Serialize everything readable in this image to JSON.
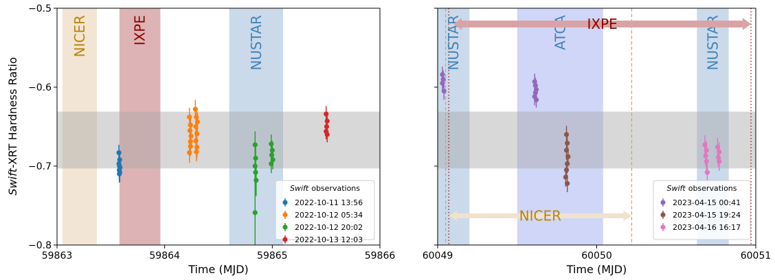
{
  "figure": {
    "ylabel_italic": "Swift",
    "ylabel_rest": "-XRT Hardness Ratio"
  },
  "chart_data": [
    {
      "type": "scatter",
      "xlabel": "Time (MJD)",
      "ylabel": "Swift-XRT Hardness Ratio",
      "xlim": [
        59863,
        59866
      ],
      "ylim": [
        -0.8,
        -0.5
      ],
      "xticks": [
        59863,
        59864,
        59865,
        59866
      ],
      "yticks": [
        -0.8,
        -0.7,
        -0.6,
        -0.5
      ],
      "grid": false,
      "legend": {
        "placement": "lower right",
        "title_italic": "Swift",
        "title_rest": "observations"
      },
      "hband": {
        "y0": -0.703,
        "y1": -0.631,
        "color": "#a9a9a9"
      },
      "spans": [
        {
          "label": "NICER",
          "x0": 59863.05,
          "x1": 59863.37,
          "color": "#e9cfae",
          "text_color": "#b8860b"
        },
        {
          "label": "IXPE",
          "x0": 59863.58,
          "x1": 59863.96,
          "color": "#c37478",
          "text_color": "#8b0000"
        },
        {
          "label": "NUSTAR",
          "x0": 59864.6,
          "x1": 59865.1,
          "color": "#9fbcda",
          "text_color": "#4682b4"
        }
      ],
      "series": [
        {
          "name": "2022-10-11 13:56",
          "color": "#1f77b4",
          "points": [
            {
              "x": 59863.575,
              "y": -0.683,
              "err": 0.01
            },
            {
              "x": 59863.582,
              "y": -0.692,
              "err": 0.011
            },
            {
              "x": 59863.575,
              "y": -0.697,
              "err": 0.011
            },
            {
              "x": 59863.58,
              "y": -0.7,
              "err": 0.012
            },
            {
              "x": 59863.585,
              "y": -0.702,
              "err": 0.011
            },
            {
              "x": 59863.578,
              "y": -0.705,
              "err": 0.012
            },
            {
              "x": 59863.583,
              "y": -0.708,
              "err": 0.012
            },
            {
              "x": 59863.579,
              "y": -0.71,
              "err": 0.011
            }
          ]
        },
        {
          "name": "2022-10-12 05:34",
          "color": "#ff7f0e",
          "points": [
            {
              "x": 59864.23,
              "y": -0.638,
              "err": 0.012
            },
            {
              "x": 59864.24,
              "y": -0.648,
              "err": 0.013
            },
            {
              "x": 59864.235,
              "y": -0.655,
              "err": 0.012
            },
            {
              "x": 59864.245,
              "y": -0.662,
              "err": 0.013
            },
            {
              "x": 59864.24,
              "y": -0.675,
              "err": 0.012
            },
            {
              "x": 59864.23,
              "y": -0.683,
              "err": 0.013
            },
            {
              "x": 59864.24,
              "y": -0.669,
              "err": 0.012
            },
            {
              "x": 59864.285,
              "y": -0.628,
              "err": 0.012
            },
            {
              "x": 59864.295,
              "y": -0.638,
              "err": 0.013
            },
            {
              "x": 59864.29,
              "y": -0.65,
              "err": 0.012
            },
            {
              "x": 59864.3,
              "y": -0.659,
              "err": 0.013
            },
            {
              "x": 59864.29,
              "y": -0.668,
              "err": 0.012
            },
            {
              "x": 59864.3,
              "y": -0.676,
              "err": 0.013
            },
            {
              "x": 59864.295,
              "y": -0.682,
              "err": 0.012
            },
            {
              "x": 59864.305,
              "y": -0.644,
              "err": 0.012
            }
          ]
        },
        {
          "name": "2022-10-12 20:02",
          "color": "#2ca02c",
          "points": [
            {
              "x": 59864.84,
              "y": -0.673,
              "err": 0.017
            },
            {
              "x": 59864.845,
              "y": -0.69,
              "err": 0.018
            },
            {
              "x": 59864.84,
              "y": -0.7,
              "err": 0.02
            },
            {
              "x": 59864.845,
              "y": -0.708,
              "err": 0.018
            },
            {
              "x": 59864.85,
              "y": -0.718,
              "err": 0.02
            },
            {
              "x": 59864.84,
              "y": -0.759,
              "err": 0.045
            },
            {
              "x": 59864.99,
              "y": -0.672,
              "err": 0.012
            },
            {
              "x": 59865.0,
              "y": -0.68,
              "err": 0.012
            },
            {
              "x": 59864.995,
              "y": -0.686,
              "err": 0.012
            },
            {
              "x": 59865.005,
              "y": -0.692,
              "err": 0.012
            },
            {
              "x": 59864.99,
              "y": -0.697,
              "err": 0.012
            }
          ]
        },
        {
          "name": "2022-10-13 12:03",
          "color": "#d62728",
          "points": [
            {
              "x": 59865.5,
              "y": -0.634,
              "err": 0.01
            },
            {
              "x": 59865.51,
              "y": -0.643,
              "err": 0.01
            },
            {
              "x": 59865.505,
              "y": -0.65,
              "err": 0.01
            },
            {
              "x": 59865.5,
              "y": -0.656,
              "err": 0.01
            },
            {
              "x": 59865.51,
              "y": -0.66,
              "err": 0.01
            }
          ]
        }
      ]
    },
    {
      "type": "scatter",
      "xlabel": "Time (MJD)",
      "ylabel": "",
      "xlim": [
        60049,
        60051
      ],
      "ylim": [
        -0.8,
        -0.5
      ],
      "xticks": [
        60049,
        60050,
        60051
      ],
      "yticks": [
        -0.8,
        -0.7,
        -0.6,
        -0.5
      ],
      "grid": false,
      "legend": {
        "placement": "lower right",
        "title_italic": "Swift",
        "title_rest": "observations"
      },
      "hband": {
        "y0": -0.703,
        "y1": -0.631,
        "color": "#a9a9a9"
      },
      "spans": [
        {
          "label": "NUSTAR",
          "x0": 60049.0,
          "x1": 60049.2,
          "color": "#9fbcda",
          "text_color": "#4682b4"
        },
        {
          "label": "ATCA",
          "x0": 60049.5,
          "x1": 60050.04,
          "color": "#a7b4f0",
          "text_color": "#4682b4"
        },
        {
          "label": "NUSTAR",
          "x0": 60050.63,
          "x1": 60050.83,
          "color": "#9fbcda",
          "text_color": "#4682b4"
        }
      ],
      "vlines": [
        {
          "x": 60049.07,
          "color": "#8b0000",
          "style": "dotted"
        },
        {
          "x": 60050.97,
          "color": "#8b0000",
          "style": "dotted"
        },
        {
          "x": 60049.05,
          "color": "#d9a25c",
          "style": "dashed"
        },
        {
          "x": 60050.22,
          "color": "#d9a25c",
          "style": "dashed"
        }
      ],
      "arrows": [
        {
          "label": "IXPE",
          "x0": 60049.1,
          "x1": 60050.97,
          "y": -0.52,
          "color": "#d9a3a6",
          "text_color": "#8b0000"
        },
        {
          "label": "NICER",
          "x0": 60049.07,
          "x1": 60050.22,
          "y": -0.763,
          "color": "#f1e2cd",
          "text_color": "#b8860b"
        }
      ],
      "series": [
        {
          "name": "2023-04-15 00:41",
          "color": "#9467bd",
          "points": [
            {
              "x": 60049.03,
              "y": -0.584,
              "err": 0.01
            },
            {
              "x": 60049.035,
              "y": -0.59,
              "err": 0.011
            },
            {
              "x": 60049.03,
              "y": -0.595,
              "err": 0.01
            },
            {
              "x": 60049.04,
              "y": -0.605,
              "err": 0.011
            },
            {
              "x": 60049.61,
              "y": -0.593,
              "err": 0.01
            },
            {
              "x": 60049.615,
              "y": -0.598,
              "err": 0.01
            },
            {
              "x": 60049.62,
              "y": -0.603,
              "err": 0.011
            },
            {
              "x": 60049.615,
              "y": -0.607,
              "err": 0.01
            },
            {
              "x": 60049.61,
              "y": -0.612,
              "err": 0.011
            },
            {
              "x": 60049.62,
              "y": -0.616,
              "err": 0.01
            }
          ]
        },
        {
          "name": "2023-04-15 19:24",
          "color": "#8c564b",
          "points": [
            {
              "x": 60049.81,
              "y": -0.66,
              "err": 0.011
            },
            {
              "x": 60049.815,
              "y": -0.671,
              "err": 0.011
            },
            {
              "x": 60049.81,
              "y": -0.68,
              "err": 0.012
            },
            {
              "x": 60049.82,
              "y": -0.688,
              "err": 0.011
            },
            {
              "x": 60049.815,
              "y": -0.697,
              "err": 0.012
            },
            {
              "x": 60049.81,
              "y": -0.705,
              "err": 0.011
            },
            {
              "x": 60049.805,
              "y": -0.714,
              "err": 0.012
            },
            {
              "x": 60049.815,
              "y": -0.722,
              "err": 0.011
            }
          ]
        },
        {
          "name": "2023-04-16 16:17",
          "color": "#e377c2",
          "points": [
            {
              "x": 60050.68,
              "y": -0.673,
              "err": 0.012
            },
            {
              "x": 60050.69,
              "y": -0.68,
              "err": 0.012
            },
            {
              "x": 60050.685,
              "y": -0.687,
              "err": 0.013
            },
            {
              "x": 60050.69,
              "y": -0.694,
              "err": 0.012
            },
            {
              "x": 60050.695,
              "y": -0.708,
              "err": 0.015
            },
            {
              "x": 60050.76,
              "y": -0.676,
              "err": 0.012
            },
            {
              "x": 60050.77,
              "y": -0.682,
              "err": 0.012
            },
            {
              "x": 60050.765,
              "y": -0.689,
              "err": 0.012
            },
            {
              "x": 60050.77,
              "y": -0.694,
              "err": 0.012
            }
          ]
        }
      ]
    }
  ]
}
